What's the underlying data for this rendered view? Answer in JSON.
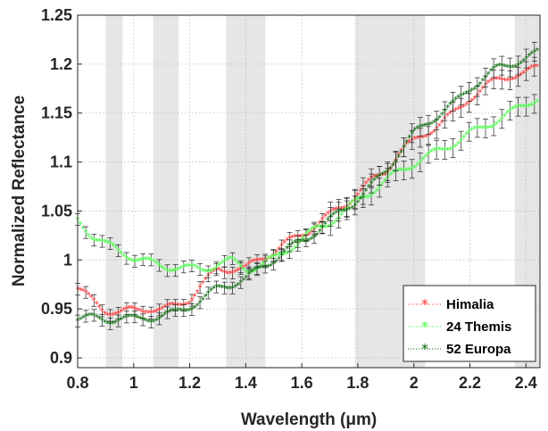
{
  "chart_data": {
    "type": "scatter",
    "title": "",
    "xlabel": "Wavelength (μm)",
    "ylabel": "Normalized Reflectance",
    "xlim": [
      0.8,
      2.45
    ],
    "ylim": [
      0.89,
      1.25
    ],
    "xticks": [
      0.8,
      1.0,
      1.2,
      1.4,
      1.6,
      1.8,
      2.0,
      2.2,
      2.4
    ],
    "xtick_labels": [
      "0.8",
      "1",
      "1.2",
      "1.4",
      "1.6",
      "1.8",
      "2",
      "2.2",
      "2.4"
    ],
    "yticks": [
      0.9,
      0.95,
      1.0,
      1.05,
      1.1,
      1.15,
      1.2,
      1.25
    ],
    "ytick_labels": [
      "0.9",
      "0.95",
      "1",
      "1.05",
      "1.1",
      "1.15",
      "1.2",
      "1.25"
    ],
    "grid": true,
    "legend_position": "bottom-right",
    "shaded_bands": [
      [
        0.9,
        0.96
      ],
      [
        1.07,
        1.16
      ],
      [
        1.33,
        1.47
      ],
      [
        1.79,
        2.04
      ],
      [
        2.36,
        2.45
      ]
    ],
    "series": [
      {
        "name": "Himalia",
        "color": "#ff2a2a",
        "points": [
          [
            0.8,
            0.97
          ],
          [
            0.85,
            0.958
          ],
          [
            0.9,
            0.948
          ],
          [
            0.95,
            0.945
          ],
          [
            1.0,
            0.948
          ],
          [
            1.05,
            0.95
          ],
          [
            1.1,
            0.948
          ],
          [
            1.15,
            0.952
          ],
          [
            1.2,
            0.96
          ],
          [
            1.25,
            0.975
          ],
          [
            1.3,
            0.99
          ],
          [
            1.35,
            0.99
          ],
          [
            1.4,
            0.99
          ],
          [
            1.45,
            1.0
          ],
          [
            1.5,
            1.008
          ],
          [
            1.55,
            1.017
          ],
          [
            1.6,
            1.025
          ],
          [
            1.65,
            1.035
          ],
          [
            1.7,
            1.045
          ],
          [
            1.75,
            1.055
          ],
          [
            1.8,
            1.068
          ],
          [
            1.85,
            1.08
          ],
          [
            1.9,
            1.09
          ],
          [
            1.95,
            1.11
          ],
          [
            2.0,
            1.12
          ],
          [
            2.05,
            1.13
          ],
          [
            2.1,
            1.14
          ],
          [
            2.15,
            1.15
          ],
          [
            2.2,
            1.165
          ],
          [
            2.25,
            1.175
          ],
          [
            2.3,
            1.183
          ],
          [
            2.35,
            1.188
          ],
          [
            2.4,
            1.19
          ],
          [
            2.44,
            1.195
          ]
        ],
        "error": 0.006
      },
      {
        "name": "24 Themis",
        "color": "#3cff3c",
        "points": [
          [
            0.8,
            1.04
          ],
          [
            0.85,
            1.025
          ],
          [
            0.9,
            1.015
          ],
          [
            0.95,
            1.008
          ],
          [
            1.0,
            1.002
          ],
          [
            1.05,
            0.997
          ],
          [
            1.1,
            0.993
          ],
          [
            1.15,
            0.992
          ],
          [
            1.2,
            0.99
          ],
          [
            1.25,
            0.99
          ],
          [
            1.3,
            0.995
          ],
          [
            1.35,
            0.998
          ],
          [
            1.4,
            0.99
          ],
          [
            1.45,
            0.993
          ],
          [
            1.5,
            1.0
          ],
          [
            1.55,
            1.01
          ],
          [
            1.6,
            1.02
          ],
          [
            1.65,
            1.03
          ],
          [
            1.7,
            1.038
          ],
          [
            1.75,
            1.048
          ],
          [
            1.8,
            1.06
          ],
          [
            1.85,
            1.07
          ],
          [
            1.9,
            1.08
          ],
          [
            1.95,
            1.09
          ],
          [
            2.0,
            1.098
          ],
          [
            2.05,
            1.105
          ],
          [
            2.1,
            1.112
          ],
          [
            2.15,
            1.12
          ],
          [
            2.2,
            1.128
          ],
          [
            2.25,
            1.135
          ],
          [
            2.3,
            1.143
          ],
          [
            2.35,
            1.15
          ],
          [
            2.4,
            1.158
          ],
          [
            2.44,
            1.165
          ]
        ],
        "error": 0.006
      },
      {
        "name": "52 Europa",
        "color": "#006400",
        "points": [
          [
            0.8,
            0.94
          ],
          [
            0.85,
            0.94
          ],
          [
            0.9,
            0.938
          ],
          [
            0.95,
            0.94
          ],
          [
            1.0,
            0.938
          ],
          [
            1.05,
            0.94
          ],
          [
            1.1,
            0.942
          ],
          [
            1.15,
            0.945
          ],
          [
            1.2,
            0.952
          ],
          [
            1.25,
            0.96
          ],
          [
            1.3,
            0.97
          ],
          [
            1.35,
            0.975
          ],
          [
            1.4,
            0.98
          ],
          [
            1.45,
            0.99
          ],
          [
            1.5,
            1.0
          ],
          [
            1.55,
            1.01
          ],
          [
            1.6,
            1.018
          ],
          [
            1.65,
            1.028
          ],
          [
            1.7,
            1.04
          ],
          [
            1.75,
            1.05
          ],
          [
            1.8,
            1.062
          ],
          [
            1.85,
            1.075
          ],
          [
            1.9,
            1.09
          ],
          [
            1.95,
            1.11
          ],
          [
            2.0,
            1.128
          ],
          [
            2.05,
            1.14
          ],
          [
            2.1,
            1.15
          ],
          [
            2.15,
            1.16
          ],
          [
            2.2,
            1.175
          ],
          [
            2.25,
            1.185
          ],
          [
            2.3,
            1.195
          ],
          [
            2.35,
            1.2
          ],
          [
            2.4,
            1.205
          ],
          [
            2.44,
            1.21
          ]
        ],
        "error": 0.006
      }
    ]
  }
}
